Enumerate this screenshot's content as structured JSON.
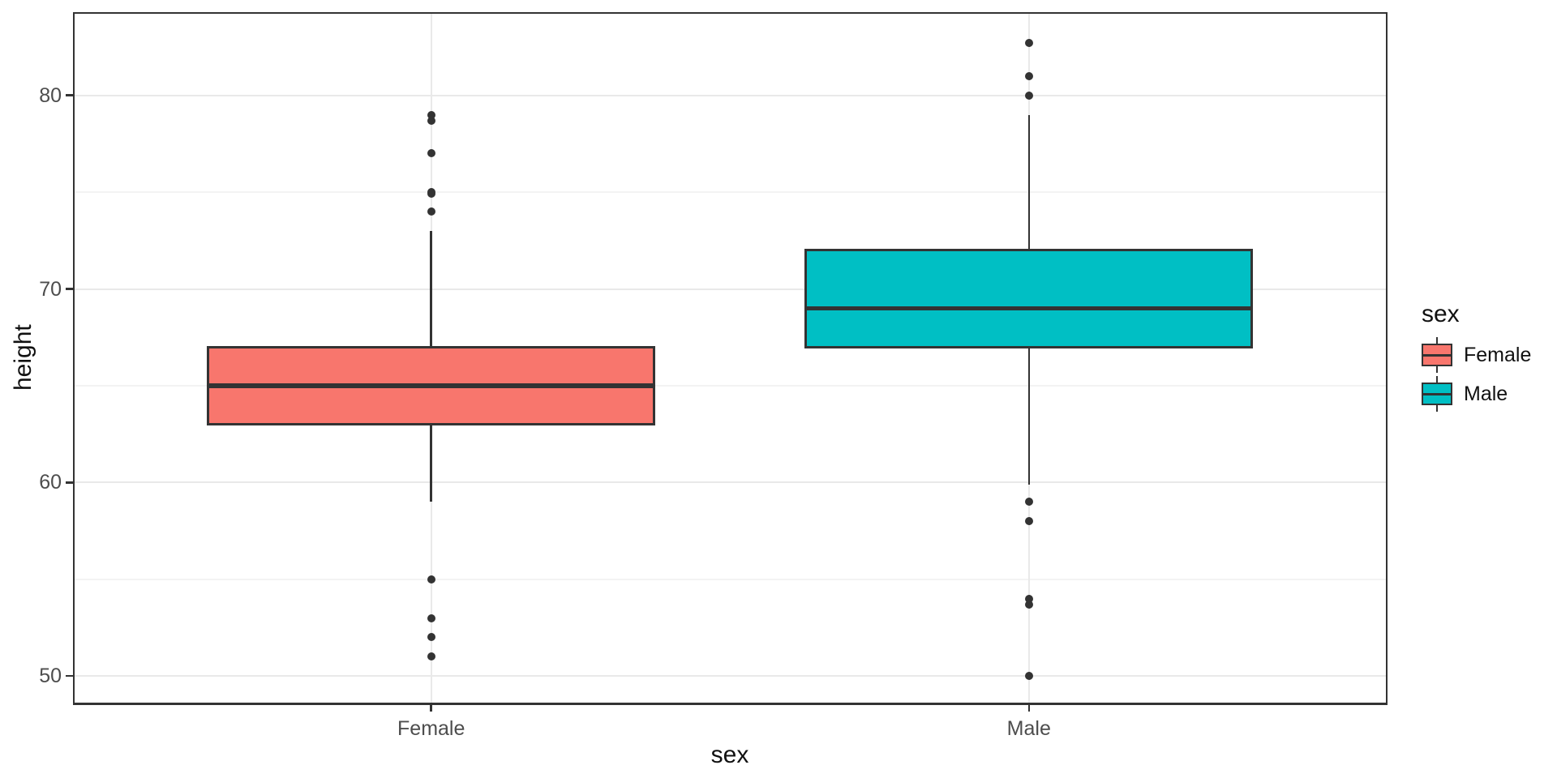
{
  "chart_data": {
    "type": "boxplot",
    "title": "",
    "x_title": "sex",
    "y_title": "height",
    "categories": [
      "Female",
      "Male"
    ],
    "y_ticks": [
      80,
      70,
      60,
      50
    ],
    "y_minor_ticks": [
      75,
      65,
      55
    ],
    "ylim": [
      48.5,
      84.3
    ],
    "grid": true,
    "legend_position": "right",
    "legend": {
      "title": "sex",
      "entries": [
        {
          "label": "Female",
          "color": "#F8766D"
        },
        {
          "label": "Male",
          "color": "#00BFC4"
        }
      ]
    },
    "series": [
      {
        "category": "Female",
        "color": "#F8766D",
        "q1": 63,
        "median": 65,
        "q3": 67,
        "whisker_low": 59,
        "whisker_high": 73,
        "outliers": [
          51,
          52,
          53,
          55,
          74,
          74.9,
          75,
          77,
          78.7,
          79
        ]
      },
      {
        "category": "Male",
        "color": "#00BFC4",
        "q1": 67,
        "median": 69,
        "q3": 72,
        "whisker_low": 59.9,
        "whisker_high": 79,
        "outliers": [
          50,
          53.7,
          54,
          58,
          59,
          80,
          81,
          82.7
        ]
      }
    ],
    "colors": {
      "box_border": "#333333",
      "grid_major": "#E9E9E9",
      "grid_minor": "#F3F3F3",
      "axis_text": "#4D4D4D",
      "title_text": "#111111",
      "panel_background": "#FFFFFF"
    }
  }
}
